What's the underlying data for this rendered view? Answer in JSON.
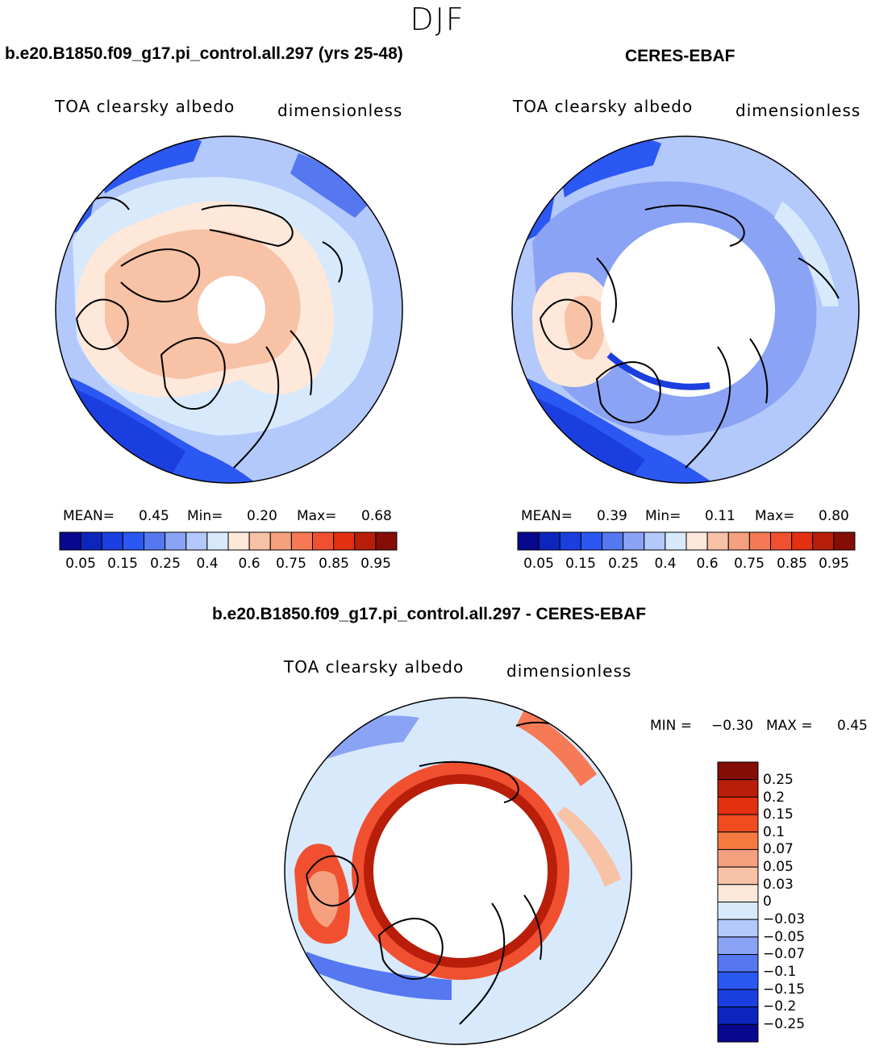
{
  "season": "DJF",
  "colors": {
    "seq": [
      "#08088e",
      "#0c26bd",
      "#1a3ee0",
      "#2b57f2",
      "#5577f0",
      "#8aa3f5",
      "#b3c8fb",
      "#d8e9fc",
      "#fde8da",
      "#f8c2a6",
      "#f5a07e",
      "#f57a55",
      "#f05030",
      "#e23010",
      "#b81e0a",
      "#840d06"
    ],
    "div": [
      "#840d06",
      "#b81e0a",
      "#e23010",
      "#f04c20",
      "#f57a40",
      "#f5a07e",
      "#f8c2a6",
      "#fde8da",
      "#d8e9fc",
      "#b3c8fb",
      "#8aa3f5",
      "#5577f0",
      "#2b57f2",
      "#1a3ee0",
      "#0c26bd",
      "#08088e"
    ]
  },
  "panels": [
    {
      "title": "b.e20.B1850.f09_g17.pi_control.all.297 (yrs 25-48)",
      "variable": "TOA clearsky albedo",
      "units": "dimensionless",
      "mean_label": "MEAN=",
      "mean": "0.45",
      "min_label": "Min=",
      "min": "0.20",
      "max_label": "Max=",
      "max": "0.68"
    },
    {
      "title": "CERES-EBAF",
      "variable": "TOA clearsky albedo",
      "units": "dimensionless",
      "mean_label": "MEAN=",
      "mean": "0.39",
      "min_label": "Min=",
      "min": "0.11",
      "max_label": "Max=",
      "max": "0.80"
    }
  ],
  "colorbar_ticks": [
    "0.05",
    "0.15",
    "0.25",
    "0.4",
    "0.6",
    "0.75",
    "0.85",
    "0.95"
  ],
  "diff": {
    "title": "b.e20.B1850.f09_g17.pi_control.all.297 - CERES-EBAF",
    "variable": "TOA clearsky albedo",
    "units": "dimensionless",
    "min_label": "MIN =",
    "min": "−0.30",
    "max_label": "MAX =",
    "max": "0.45",
    "ticks": [
      "0.25",
      "0.2",
      "0.15",
      "0.1",
      "0.07",
      "0.05",
      "0.03",
      "0",
      "−0.03",
      "−0.05",
      "−0.07",
      "−0.1",
      "−0.15",
      "−0.2",
      "−0.25"
    ]
  }
}
